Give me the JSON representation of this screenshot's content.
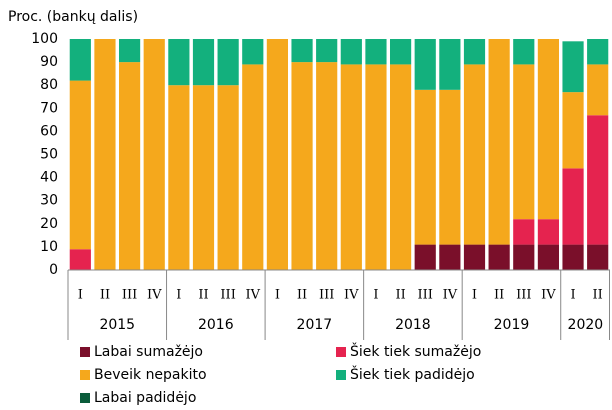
{
  "chart_data": {
    "type": "stacked_bar",
    "y_axis_label": "Proc. (bankų dalis)",
    "groups": [
      {
        "name": "2015",
        "categories": [
          "I",
          "II",
          "III",
          "IV"
        ]
      },
      {
        "name": "2016",
        "categories": [
          "I",
          "II",
          "III",
          "IV"
        ]
      },
      {
        "name": "2017",
        "categories": [
          "I",
          "II",
          "III",
          "IV"
        ]
      },
      {
        "name": "2018",
        "categories": [
          "I",
          "II",
          "III",
          "IV"
        ]
      },
      {
        "name": "2019",
        "categories": [
          "I",
          "II",
          "III",
          "IV"
        ]
      },
      {
        "name": "2020",
        "categories": [
          "I",
          "II"
        ]
      }
    ],
    "series": [
      {
        "name": "Labai sumažėjo",
        "color": "#7a0f2a",
        "values": [
          0,
          0,
          0,
          0,
          0,
          0,
          0,
          0,
          0,
          0,
          0,
          0,
          0,
          0,
          11,
          11,
          11,
          11,
          11,
          11,
          11,
          11
        ]
      },
      {
        "name": "Šiek tiek sumažėjo",
        "color": "#e5234f",
        "values": [
          9,
          0,
          0,
          0,
          0,
          0,
          0,
          0,
          0,
          0,
          0,
          0,
          0,
          0,
          0,
          0,
          0,
          0,
          11,
          11,
          33,
          56
        ]
      },
      {
        "name": "Beveik nepakito",
        "color": "#f5a81c",
        "values": [
          73,
          100,
          90,
          100,
          80,
          80,
          80,
          89,
          100,
          90,
          90,
          89,
          89,
          89,
          67,
          67,
          78,
          89,
          67,
          78,
          33,
          22
        ]
      },
      {
        "name": "Šiek tiek padidėjo",
        "color": "#13b07d",
        "values": [
          18,
          0,
          10,
          0,
          20,
          20,
          20,
          11,
          0,
          10,
          10,
          11,
          11,
          11,
          22,
          22,
          11,
          0,
          11,
          0,
          22,
          11
        ]
      },
      {
        "name": "Labai padidėjo",
        "color": "#0a5c3b",
        "values": [
          0,
          0,
          0,
          0,
          0,
          0,
          0,
          0,
          0,
          0,
          0,
          0,
          0,
          0,
          0,
          0,
          0,
          0,
          0,
          0,
          0,
          0
        ]
      }
    ],
    "ylim": [
      0,
      100
    ],
    "yticks": [
      0,
      10,
      20,
      30,
      40,
      50,
      60,
      70,
      80,
      90,
      100
    ]
  }
}
